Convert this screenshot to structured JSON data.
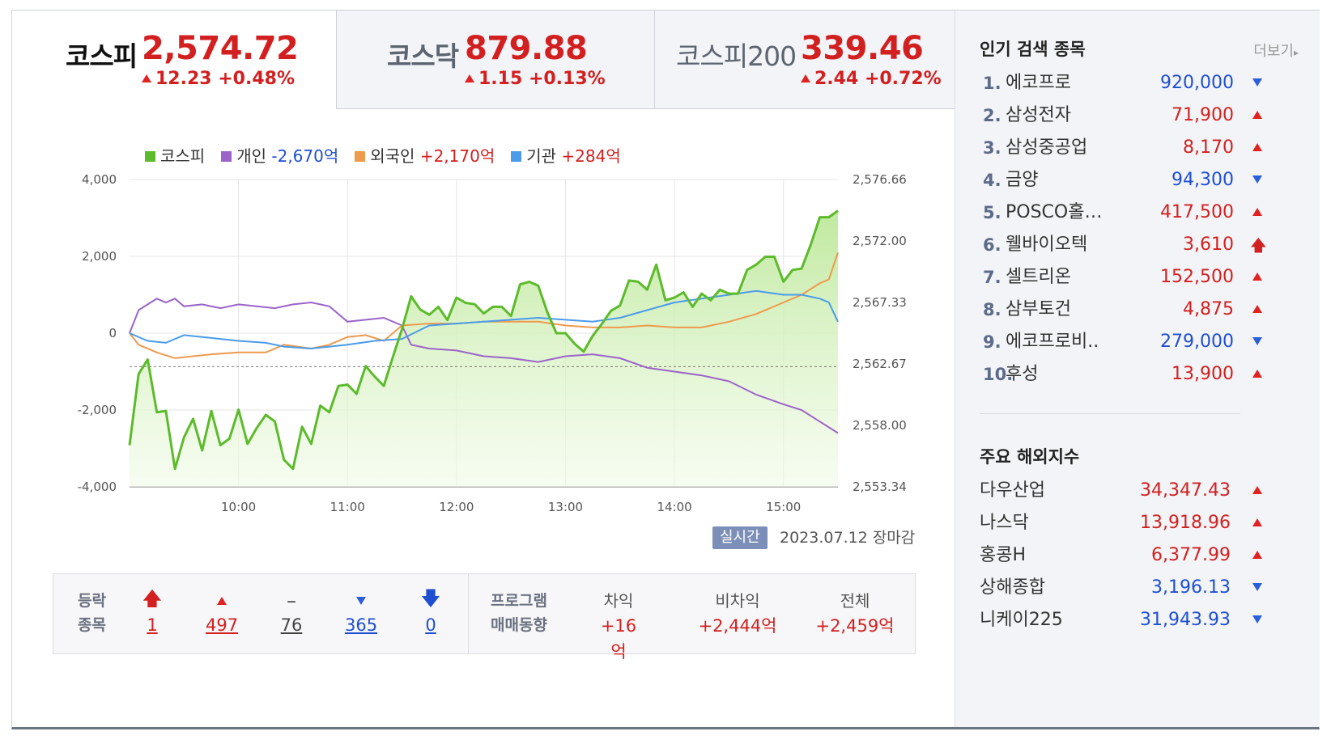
{
  "tabs": [
    {
      "name": "코스피",
      "value": "2,574.72",
      "change": "12.23 +0.48%"
    },
    {
      "name": "코스닥",
      "value": "879.88",
      "change": "1.15 +0.13%"
    },
    {
      "name": "코스피200",
      "value": "339.46",
      "change": "2.44 +0.72%"
    }
  ],
  "legend": {
    "kospi": "코스피",
    "individual_label": "개인",
    "individual_value": "-2,670억",
    "foreign_label": "외국인",
    "foreign_value": "+2,170억",
    "institution_label": "기관",
    "institution_value": "+284억"
  },
  "colors": {
    "kospi": "#5cbb2a",
    "individual": "#9b63c9",
    "foreign": "#ee9a4d",
    "institution": "#4a9bea",
    "up": "#d22020",
    "down": "#1f4fd1"
  },
  "status": {
    "realtime": "실시간",
    "date": "2023.07.12 장마감"
  },
  "advance_decline": {
    "label_1": "등락",
    "label_2": "종목",
    "items": [
      {
        "icon": "upper-limit-arrow-icon",
        "value": "1"
      },
      {
        "icon": "up-triangle-icon",
        "value": "497"
      },
      {
        "icon": "unchanged-dash-icon",
        "value": "76"
      },
      {
        "icon": "down-triangle-icon",
        "value": "365"
      },
      {
        "icon": "lower-limit-arrow-icon",
        "value": "0"
      }
    ]
  },
  "program": {
    "label_1": "프로그램",
    "label_2": "매매동향",
    "items": [
      {
        "header": "차익",
        "value": "+16억"
      },
      {
        "header": "비차익",
        "value": "+2,444억"
      },
      {
        "header": "전체",
        "value": "+2,459억"
      }
    ]
  },
  "popular": {
    "title": "인기 검색 종목",
    "more": "더보기",
    "items": [
      {
        "rank": "1.",
        "name": "에코프로",
        "price": "920,000",
        "dir": "down"
      },
      {
        "rank": "2.",
        "name": "삼성전자",
        "price": "71,900",
        "dir": "up"
      },
      {
        "rank": "3.",
        "name": "삼성중공업",
        "price": "8,170",
        "dir": "up"
      },
      {
        "rank": "4.",
        "name": "금양",
        "price": "94,300",
        "dir": "down"
      },
      {
        "rank": "5.",
        "name": "POSCO홀…",
        "price": "417,500",
        "dir": "up"
      },
      {
        "rank": "6.",
        "name": "웰바이오텍",
        "price": "3,610",
        "dir": "limit-up"
      },
      {
        "rank": "7.",
        "name": "셀트리온",
        "price": "152,500",
        "dir": "up"
      },
      {
        "rank": "8.",
        "name": "삼부토건",
        "price": "4,875",
        "dir": "up"
      },
      {
        "rank": "9.",
        "name": "에코프로비..",
        "price": "279,000",
        "dir": "down"
      },
      {
        "rank": "10.",
        "name": "후성",
        "price": "13,900",
        "dir": "up"
      }
    ]
  },
  "world": {
    "title": "주요 해외지수",
    "items": [
      {
        "name": "다우산업",
        "value": "34,347.43",
        "dir": "up"
      },
      {
        "name": "나스닥",
        "value": "13,918.96",
        "dir": "up"
      },
      {
        "name": "홍콩H",
        "value": "6,377.99",
        "dir": "up"
      },
      {
        "name": "상해종합",
        "value": "3,196.13",
        "dir": "down"
      },
      {
        "name": "니케이225",
        "value": "31,943.93",
        "dir": "down"
      }
    ]
  },
  "chart_data": {
    "type": "line",
    "x_ticks": [
      "10:00",
      "11:00",
      "12:00",
      "13:00",
      "14:00",
      "15:00"
    ],
    "left_axis": {
      "ticks": [
        "4,000",
        "2,000",
        "0",
        "-2,000",
        "-4,000"
      ],
      "range": [
        -4000,
        4000
      ]
    },
    "right_axis": {
      "ticks": [
        "2,576.66",
        "2,572.00",
        "2,567.33",
        "2,562.67",
        "2,558.00",
        "2,553.34"
      ],
      "range": [
        2553.34,
        2576.66
      ]
    },
    "reference_line": 2562.46,
    "time_range": [
      "09:00",
      "15:30"
    ],
    "series": [
      {
        "name": "코스피",
        "axis": "right",
        "points": [
          [
            "09:00",
            2556.5
          ],
          [
            "09:05",
            2561.9
          ],
          [
            "09:10",
            2563.0
          ],
          [
            "09:15",
            2559.0
          ],
          [
            "09:20",
            2559.1
          ],
          [
            "09:25",
            2554.7
          ],
          [
            "09:30",
            2557.1
          ],
          [
            "09:35",
            2558.5
          ],
          [
            "09:40",
            2556.1
          ],
          [
            "09:45",
            2559.1
          ],
          [
            "09:50",
            2556.5
          ],
          [
            "09:55",
            2557.0
          ],
          [
            "10:00",
            2559.2
          ],
          [
            "10:05",
            2556.6
          ],
          [
            "10:10",
            2557.8
          ],
          [
            "10:15",
            2558.8
          ],
          [
            "10:20",
            2558.3
          ],
          [
            "10:25",
            2555.4
          ],
          [
            "10:30",
            2554.7
          ],
          [
            "10:35",
            2557.9
          ],
          [
            "10:40",
            2556.6
          ],
          [
            "10:45",
            2559.5
          ],
          [
            "10:50",
            2559.0
          ],
          [
            "10:55",
            2561.0
          ],
          [
            "11:00",
            2561.1
          ],
          [
            "11:05",
            2560.4
          ],
          [
            "11:10",
            2562.5
          ],
          [
            "11:15",
            2561.7
          ],
          [
            "11:20",
            2561.0
          ],
          [
            "11:25",
            2563.2
          ],
          [
            "11:30",
            2565.3
          ],
          [
            "11:35",
            2567.8
          ],
          [
            "11:40",
            2566.8
          ],
          [
            "11:45",
            2566.4
          ],
          [
            "11:50",
            2567.0
          ],
          [
            "11:55",
            2566.0
          ],
          [
            "12:00",
            2567.7
          ],
          [
            "12:05",
            2567.3
          ],
          [
            "12:10",
            2567.2
          ],
          [
            "12:15",
            2566.5
          ],
          [
            "12:20",
            2567.0
          ],
          [
            "12:25",
            2567.0
          ],
          [
            "12:30",
            2566.3
          ],
          [
            "12:35",
            2568.7
          ],
          [
            "12:40",
            2568.9
          ],
          [
            "12:45",
            2568.6
          ],
          [
            "12:50",
            2566.6
          ],
          [
            "12:55",
            2565.0
          ],
          [
            "13:00",
            2565.0
          ],
          [
            "13:05",
            2564.2
          ],
          [
            "13:10",
            2563.6
          ],
          [
            "13:15",
            2564.8
          ],
          [
            "13:20",
            2565.7
          ],
          [
            "13:25",
            2566.7
          ],
          [
            "13:30",
            2567.1
          ],
          [
            "13:35",
            2569.0
          ],
          [
            "13:40",
            2568.9
          ],
          [
            "13:45",
            2568.3
          ],
          [
            "13:50",
            2570.2
          ],
          [
            "13:55",
            2567.5
          ],
          [
            "14:00",
            2567.7
          ],
          [
            "14:05",
            2568.1
          ],
          [
            "14:10",
            2567.0
          ],
          [
            "14:15",
            2568.0
          ],
          [
            "14:20",
            2567.5
          ],
          [
            "14:25",
            2568.3
          ],
          [
            "14:30",
            2568.0
          ],
          [
            "14:35",
            2568.0
          ],
          [
            "14:40",
            2569.8
          ],
          [
            "14:45",
            2570.2
          ],
          [
            "14:50",
            2570.8
          ],
          [
            "14:55",
            2570.8
          ],
          [
            "15:00",
            2568.9
          ],
          [
            "15:05",
            2569.8
          ],
          [
            "15:10",
            2569.9
          ],
          [
            "15:15",
            2571.7
          ],
          [
            "15:20",
            2573.8
          ],
          [
            "15:25",
            2573.8
          ],
          [
            "15:30",
            2574.3
          ]
        ]
      },
      {
        "name": "개인",
        "axis": "left",
        "points": [
          [
            "09:00",
            0
          ],
          [
            "09:05",
            600
          ],
          [
            "09:15",
            900
          ],
          [
            "09:20",
            800
          ],
          [
            "09:25",
            900
          ],
          [
            "09:30",
            700
          ],
          [
            "09:40",
            750
          ],
          [
            "09:50",
            650
          ],
          [
            "10:00",
            750
          ],
          [
            "10:10",
            700
          ],
          [
            "10:20",
            650
          ],
          [
            "10:30",
            750
          ],
          [
            "10:40",
            800
          ],
          [
            "10:50",
            700
          ],
          [
            "11:00",
            300
          ],
          [
            "11:10",
            350
          ],
          [
            "11:20",
            400
          ],
          [
            "11:30",
            200
          ],
          [
            "11:35",
            -300
          ],
          [
            "11:45",
            -400
          ],
          [
            "12:00",
            -450
          ],
          [
            "12:15",
            -600
          ],
          [
            "12:30",
            -650
          ],
          [
            "12:45",
            -750
          ],
          [
            "13:00",
            -600
          ],
          [
            "13:15",
            -550
          ],
          [
            "13:30",
            -650
          ],
          [
            "13:45",
            -900
          ],
          [
            "14:00",
            -1000
          ],
          [
            "14:15",
            -1100
          ],
          [
            "14:30",
            -1250
          ],
          [
            "14:45",
            -1600
          ],
          [
            "15:00",
            -1850
          ],
          [
            "15:10",
            -2000
          ],
          [
            "15:20",
            -2300
          ],
          [
            "15:30",
            -2600
          ]
        ]
      },
      {
        "name": "외국인",
        "axis": "left",
        "points": [
          [
            "09:00",
            0
          ],
          [
            "09:05",
            -300
          ],
          [
            "09:15",
            -500
          ],
          [
            "09:25",
            -650
          ],
          [
            "09:35",
            -600
          ],
          [
            "09:45",
            -550
          ],
          [
            "10:00",
            -500
          ],
          [
            "10:15",
            -500
          ],
          [
            "10:25",
            -300
          ],
          [
            "10:40",
            -400
          ],
          [
            "10:50",
            -300
          ],
          [
            "11:00",
            -100
          ],
          [
            "11:10",
            -50
          ],
          [
            "11:20",
            -200
          ],
          [
            "11:30",
            200
          ],
          [
            "11:45",
            250
          ],
          [
            "12:00",
            250
          ],
          [
            "12:15",
            300
          ],
          [
            "12:30",
            300
          ],
          [
            "12:45",
            300
          ],
          [
            "13:00",
            200
          ],
          [
            "13:15",
            150
          ],
          [
            "13:30",
            150
          ],
          [
            "13:45",
            200
          ],
          [
            "14:00",
            150
          ],
          [
            "14:15",
            150
          ],
          [
            "14:30",
            300
          ],
          [
            "14:45",
            500
          ],
          [
            "15:00",
            800
          ],
          [
            "15:10",
            1000
          ],
          [
            "15:20",
            1300
          ],
          [
            "15:25",
            1400
          ],
          [
            "15:30",
            2100
          ]
        ]
      },
      {
        "name": "기관",
        "axis": "left",
        "points": [
          [
            "09:00",
            0
          ],
          [
            "09:10",
            -200
          ],
          [
            "09:20",
            -250
          ],
          [
            "09:30",
            -50
          ],
          [
            "09:40",
            -100
          ],
          [
            "09:50",
            -150
          ],
          [
            "10:00",
            -200
          ],
          [
            "10:15",
            -250
          ],
          [
            "10:25",
            -350
          ],
          [
            "10:40",
            -400
          ],
          [
            "10:50",
            -350
          ],
          [
            "11:00",
            -300
          ],
          [
            "11:15",
            -200
          ],
          [
            "11:30",
            -150
          ],
          [
            "11:45",
            200
          ],
          [
            "12:00",
            250
          ],
          [
            "12:15",
            300
          ],
          [
            "12:30",
            350
          ],
          [
            "12:45",
            400
          ],
          [
            "13:00",
            350
          ],
          [
            "13:15",
            300
          ],
          [
            "13:30",
            400
          ],
          [
            "13:45",
            600
          ],
          [
            "14:00",
            800
          ],
          [
            "14:15",
            900
          ],
          [
            "14:30",
            1000
          ],
          [
            "14:45",
            1100
          ],
          [
            "15:00",
            1000
          ],
          [
            "15:10",
            1000
          ],
          [
            "15:20",
            900
          ],
          [
            "15:25",
            800
          ],
          [
            "15:30",
            300
          ]
        ]
      }
    ]
  }
}
